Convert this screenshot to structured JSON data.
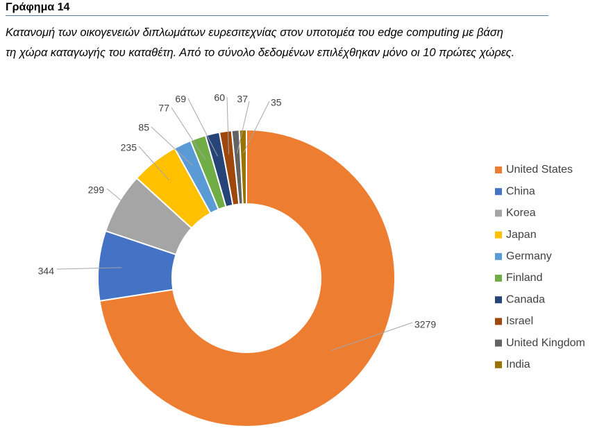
{
  "heading": "Γράφημα 14",
  "caption": {
    "line1": "Κατανομή των οικογενειών διπλωμάτων ευρεσιτεχνίας στον υποτομέα  του edge computing με βάση",
    "line2": "τη χώρα καταγωγής του καταθέτη. Από το σύνολο δεδομένων επιλέχθηκαν μόνο οι 10 πρώτες χώρες."
  },
  "chart_data": {
    "type": "pie",
    "donut": true,
    "legend_position": "right",
    "categories": [
      "United States",
      "China",
      "Korea",
      "Japan",
      "Germany",
      "Finland",
      "Canada",
      "Israel",
      "United Kingdom",
      "India"
    ],
    "values": [
      3279,
      344,
      299,
      235,
      85,
      77,
      69,
      60,
      37,
      35
    ],
    "colors": [
      "#ed7d31",
      "#4472c4",
      "#a5a5a5",
      "#ffc000",
      "#5b9bd5",
      "#70ad47",
      "#264478",
      "#9e480e",
      "#636363",
      "#997300"
    ]
  }
}
